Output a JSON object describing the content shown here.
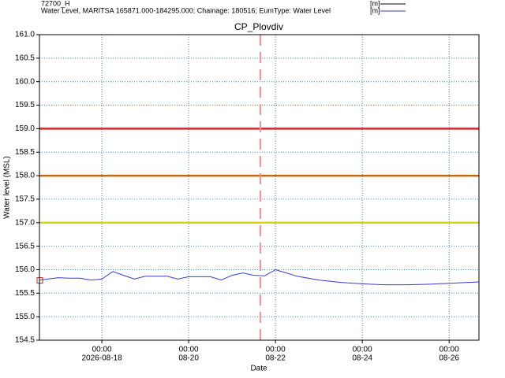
{
  "chart_data": {
    "type": "line",
    "title": "CP_Plovdiv",
    "ylabel": "Water level (MSL)",
    "xlabel": "Date",
    "xlim": [
      "2026-08-16 13:30",
      "2026-08-26 16:30"
    ],
    "ylim": [
      154.5,
      161
    ],
    "yticks": [
      {
        "value": 154.5,
        "label": "154.5"
      },
      {
        "value": 155,
        "label": "155.0"
      },
      155.5,
      {
        "value": 156,
        "label": "156.0"
      },
      156.5,
      {
        "value": 157,
        "label": "157.0"
      },
      157.5,
      {
        "value": 158,
        "label": "158.0"
      },
      158.5,
      {
        "value": 159,
        "label": "159.0"
      },
      159.5,
      {
        "value": 160,
        "label": "160.0"
      },
      160.5,
      {
        "value": 161,
        "label": "161.0"
      }
    ],
    "xticks": [
      {
        "value": "2026-08-18 00:00",
        "label": [
          "00:00",
          "2026-08-18"
        ]
      },
      {
        "value": "2026-08-20 00:00",
        "label": [
          "00:00",
          "08-20"
        ]
      },
      {
        "value": "2026-08-22 00:00",
        "label": [
          "00:00",
          "08-22"
        ]
      },
      {
        "value": "2026-08-24 00:00",
        "label": [
          "00:00",
          "08-24"
        ]
      },
      {
        "value": "2026-08-26 00:00",
        "label": [
          "00:00",
          "08-26"
        ]
      }
    ],
    "grid": true,
    "hlines": [
      {
        "value": 159,
        "color": "#cc2a2a"
      },
      {
        "value": 158,
        "color": "#c06a10"
      },
      {
        "value": 157,
        "color": "#d8d800"
      }
    ],
    "vline": {
      "value": "2026-08-21 15:36",
      "color": "#f09090"
    },
    "x": [
      "2026-08-16 13:30",
      "2026-08-16 18:00",
      "2026-08-17 00:00",
      "2026-08-17 06:00",
      "2026-08-17 12:00",
      "2026-08-17 18:00",
      "2026-08-18 00:00",
      "2026-08-18 06:00",
      "2026-08-18 12:00",
      "2026-08-18 18:00",
      "2026-08-19 00:00",
      "2026-08-19 06:00",
      "2026-08-19 12:00",
      "2026-08-19 18:00",
      "2026-08-20 00:00",
      "2026-08-20 06:00",
      "2026-08-20 12:00",
      "2026-08-20 18:00",
      "2026-08-21 00:00",
      "2026-08-21 06:00",
      "2026-08-21 12:00",
      "2026-08-21 18:00",
      "2026-08-22 00:00",
      "2026-08-22 06:00",
      "2026-08-22 12:00",
      "2026-08-23 00:00",
      "2026-08-23 12:00",
      "2026-08-24 00:00",
      "2026-08-24 12:00",
      "2026-08-25 00:00",
      "2026-08-25 12:00",
      "2026-08-26 00:00",
      "2026-08-26 16:30"
    ],
    "series": [
      {
        "name": "72700_H",
        "unit": "[m]",
        "color": "#000000",
        "values": [
          null,
          null,
          null,
          null,
          null,
          null,
          null,
          null,
          null,
          null,
          null,
          null,
          null,
          null,
          null,
          null,
          null,
          null,
          null,
          null,
          null,
          null,
          null,
          null,
          null,
          null,
          null,
          null,
          null,
          null,
          null,
          null,
          null
        ]
      },
      {
        "name": "Water Level, MARITSA 165871.000-184295.000; Chainage: 180516; EumType: Water Level",
        "unit": "[m]",
        "color": "#3a3ad0",
        "values": [
          155.78,
          155.8,
          155.83,
          155.82,
          155.82,
          155.78,
          155.8,
          155.96,
          155.88,
          155.8,
          155.86,
          155.86,
          155.86,
          155.8,
          155.85,
          155.85,
          155.85,
          155.78,
          155.88,
          155.93,
          155.88,
          155.87,
          156.0,
          155.93,
          155.86,
          155.78,
          155.73,
          155.7,
          155.68,
          155.68,
          155.69,
          155.71,
          155.74
        ]
      }
    ]
  }
}
